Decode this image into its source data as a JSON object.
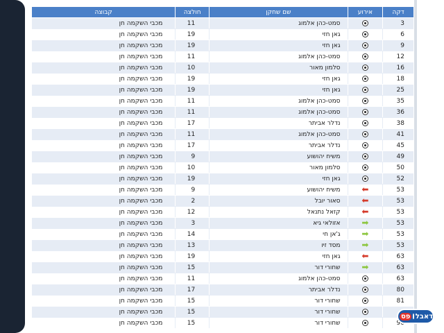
{
  "table": {
    "headers": {
      "minute": "דקה",
      "event": "אירוע",
      "player": "שם שחקן",
      "shirt": "חולצה",
      "team": "קבוצה"
    },
    "rows": [
      {
        "minute": "3",
        "event": "goal",
        "player": "סמט-כהן אלמוג",
        "shirt": "11",
        "team": "מכבי השקמה חן"
      },
      {
        "minute": "6",
        "event": "goal",
        "player": "גאן חזי",
        "shirt": "19",
        "team": "מכבי השקמה חן"
      },
      {
        "minute": "9",
        "event": "goal",
        "player": "גאן חזי",
        "shirt": "19",
        "team": "מכבי השקמה חן"
      },
      {
        "minute": "12",
        "event": "goal",
        "player": "סמט-כהן אלמוג",
        "shirt": "11",
        "team": "מכבי השקמה חן"
      },
      {
        "minute": "16",
        "event": "goal",
        "player": "סלמון מאור",
        "shirt": "10",
        "team": "מכבי השקמה חן"
      },
      {
        "minute": "18",
        "event": "goal",
        "player": "גאן חזי",
        "shirt": "19",
        "team": "מכבי השקמה חן"
      },
      {
        "minute": "25",
        "event": "goal",
        "player": "גאן חזי",
        "shirt": "19",
        "team": "מכבי השקמה חן"
      },
      {
        "minute": "35",
        "event": "goal",
        "player": "סמט-כהן אלמוג",
        "shirt": "11",
        "team": "מכבי השקמה חן"
      },
      {
        "minute": "36",
        "event": "goal",
        "player": "סמט-כהן אלמוג",
        "shirt": "11",
        "team": "מכבי השקמה חן"
      },
      {
        "minute": "38",
        "event": "goal",
        "player": "נדלר אביתר",
        "shirt": "17",
        "team": "מכבי השקמה חן"
      },
      {
        "minute": "41",
        "event": "goal",
        "player": "סמט-כהן אלמוג",
        "shirt": "11",
        "team": "מכבי השקמה חן"
      },
      {
        "minute": "45",
        "event": "goal",
        "player": "נדלר אביתר",
        "shirt": "17",
        "team": "מכבי השקמה חן"
      },
      {
        "minute": "49",
        "event": "goal",
        "player": "משיח יהושוע",
        "shirt": "9",
        "team": "מכבי השקמה חן"
      },
      {
        "minute": "50",
        "event": "goal",
        "player": "סלמון מאור",
        "shirt": "10",
        "team": "מכבי השקמה חן"
      },
      {
        "minute": "52",
        "event": "goal",
        "player": "גאן חזי",
        "shirt": "19",
        "team": "מכבי השקמה חן"
      },
      {
        "minute": "53",
        "event": "sub-out",
        "player": "משיח יהושוע",
        "shirt": "9",
        "team": "מכבי השקמה חן"
      },
      {
        "minute": "53",
        "event": "sub-out",
        "player": "סאור יובל",
        "shirt": "2",
        "team": "מכבי השקמה חן"
      },
      {
        "minute": "53",
        "event": "sub-out",
        "player": "קזאל נתנאל",
        "shirt": "12",
        "team": "מכבי השקמה חן"
      },
      {
        "minute": "53",
        "event": "sub-in",
        "player": "אזולאי גיא",
        "shirt": "3",
        "team": "מכבי השקמה חן"
      },
      {
        "minute": "53",
        "event": "sub-in",
        "player": "ג'אן חי",
        "shirt": "14",
        "team": "מכבי השקמה חן"
      },
      {
        "minute": "53",
        "event": "sub-in",
        "player": "מסד זיו",
        "shirt": "13",
        "team": "מכבי השקמה חן"
      },
      {
        "minute": "63",
        "event": "sub-out",
        "player": "גאן חזי",
        "shirt": "19",
        "team": "מכבי השקמה חן"
      },
      {
        "minute": "63",
        "event": "sub-in",
        "player": "שחורי דור",
        "shirt": "15",
        "team": "מכבי השקמה חן"
      },
      {
        "minute": "63",
        "event": "goal",
        "player": "סמט-כהן אלמוג",
        "shirt": "11",
        "team": "מכבי השקמה חן"
      },
      {
        "minute": "80",
        "event": "goal",
        "player": "נדלר אביתר",
        "shirt": "17",
        "team": "מכבי השקמה חן"
      },
      {
        "minute": "81",
        "event": "goal",
        "player": "שחורי דור",
        "shirt": "15",
        "team": "מכבי השקמה חן"
      },
      {
        "minute": "",
        "event": "goal",
        "player": "שחורי דור",
        "shirt": "15",
        "team": "מכבי השקמה חן"
      },
      {
        "minute": "90",
        "event": "goal",
        "player": "שחורי דור",
        "shirt": "15",
        "team": "מכבי השקמה חן"
      }
    ]
  },
  "logo": {
    "part1": "דאבל",
    "part2": "פס"
  },
  "colors": {
    "header_bg": "#4a80c8",
    "row_alt": "#e6ecf5",
    "sub_out": "#d53a2a",
    "sub_in": "#8cc63f"
  }
}
